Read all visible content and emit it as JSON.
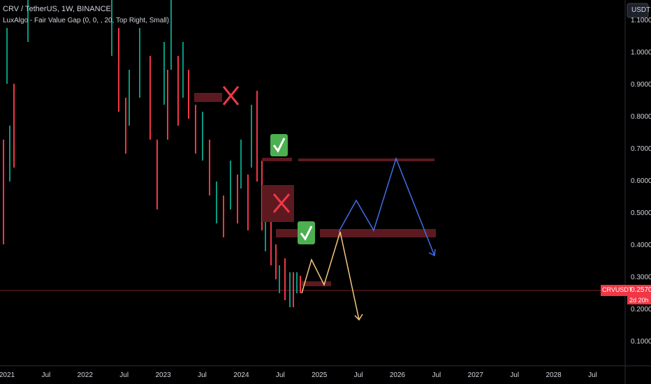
{
  "header": {
    "title": "CRV / TetherUS, 1W, BINANCE",
    "indicator": "LuxAlgo - Fair Value Gap (0, 0, , 20, Top Right, Small)"
  },
  "price_axis": {
    "currency": "USDT",
    "labels": [
      "1.1000",
      "1.0000",
      "0.9000",
      "0.8000",
      "0.7000",
      "0.6000",
      "0.5000",
      "0.4000",
      "0.3000",
      "0.2000",
      "0.1000"
    ]
  },
  "price_tag": {
    "symbol": "CRVUSDT",
    "price": "0.2570",
    "countdown": "2d 20h"
  },
  "time_axis": {
    "labels": [
      "2021",
      "Jul",
      "2022",
      "Jul",
      "2023",
      "Jul",
      "2024",
      "Jul",
      "2025",
      "Jul",
      "2026",
      "Jul",
      "2027",
      "Jul",
      "2028",
      "Jul"
    ]
  }
}
